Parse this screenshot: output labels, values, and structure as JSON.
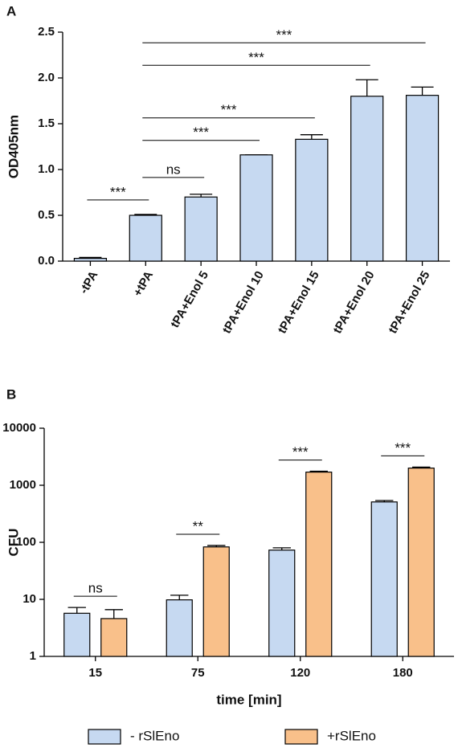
{
  "chart_data": [
    {
      "type": "bar",
      "label": "A",
      "ylabel": "OD405nm",
      "categories": [
        "-tPA",
        "+tPA",
        "tPA+Enol 5",
        "tPA+Enol 10",
        "tPA+Enol 15",
        "tPA+Enol 20",
        "tPA+Enol 25"
      ],
      "values": [
        0.03,
        0.5,
        0.7,
        1.16,
        1.33,
        1.8,
        1.81
      ],
      "errors": [
        0.01,
        0.01,
        0.03,
        0,
        0.05,
        0.18,
        0.09
      ],
      "color": "#c6d9f1",
      "ylim": [
        0,
        2.5
      ],
      "yticks": [
        {
          "value": 0,
          "label": "0.0"
        },
        0.5,
        {
          "value": 1,
          "label": "1.0"
        },
        1.5,
        {
          "value": 2,
          "label": "2.0"
        },
        2.5
      ],
      "annotations": [
        {
          "text": "***",
          "from": "-tPA",
          "to": "+tPA"
        },
        {
          "text": "ns",
          "from": "+tPA",
          "to": "tPA+Enol 5"
        },
        {
          "text": "***",
          "from": "+tPA",
          "to": "tPA+Enol 10"
        },
        {
          "text": "***",
          "from": "+tPA",
          "to": "tPA+Enol 15"
        },
        {
          "text": "***",
          "from": "+tPA",
          "to": "tPA+Enol 20"
        },
        {
          "text": "***",
          "from": "+tPA",
          "to": "tPA+Enol 25"
        }
      ]
    },
    {
      "type": "grouped_bar",
      "label": "B",
      "ylabel": "CFU",
      "xlabel": "time [min]",
      "categories": [
        "15",
        "75",
        "120",
        "180"
      ],
      "series": [
        {
          "name": "- rSlEno",
          "color": "#c6d9f1",
          "values": [
            5.7,
            9.8,
            73,
            510
          ],
          "errors": [
            1.5,
            2,
            7,
            30
          ]
        },
        {
          "name": "+rSlEno",
          "color": "#f9c08a",
          "values": [
            4.6,
            83,
            1700,
            2000
          ],
          "errors": [
            2,
            5,
            60,
            80
          ]
        }
      ],
      "log_scale": true,
      "ylim": [
        1,
        10000
      ],
      "yticks": [
        1,
        10,
        100,
        1000,
        10000
      ],
      "annotations": [
        {
          "text": "ns",
          "category": "15"
        },
        {
          "text": "**",
          "category": "75"
        },
        {
          "text": "***",
          "category": "120"
        },
        {
          "text": "***",
          "category": "180"
        }
      ]
    }
  ]
}
